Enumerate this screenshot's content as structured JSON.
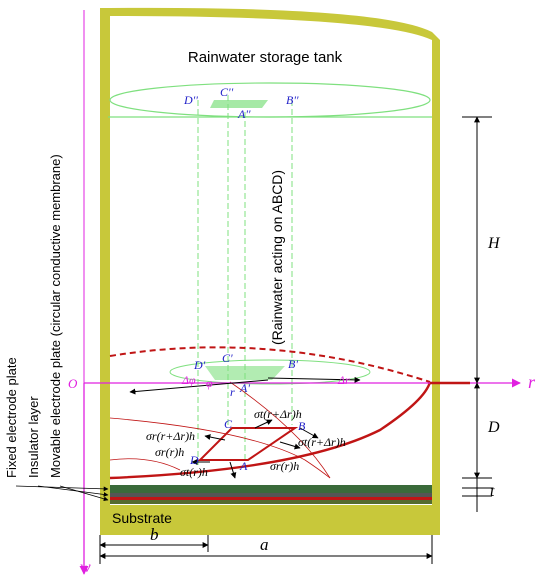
{
  "labels": {
    "tank_title": "Rainwater storage tank",
    "rain_note": "(Rainwater acting on ABCD)",
    "side_fixed": "Fixed electrode plate",
    "side_insulator": "Insulator layer",
    "side_movable": "Movable electrode plate (circular conductive membrane)",
    "substrate": "Substrate",
    "axis_r": "r",
    "axis_w": "w",
    "origin": "O",
    "dim_H": "H",
    "dim_D": "D",
    "dim_t": "t",
    "dim_a": "a",
    "dim_b": "b",
    "top_A": "A''",
    "top_B": "B''",
    "top_C": "C''",
    "top_D": "D''",
    "mid_A": "A'",
    "mid_B": "B'",
    "mid_C": "C'",
    "mid_D": "D'",
    "el_A": "A",
    "el_B": "B",
    "el_C": "C",
    "el_D": "D",
    "delta_phi": "Δφ",
    "phi": "φ",
    "r_small": "r",
    "delta_r": "Δr",
    "sr_rdr": "σr(r+Δr)h",
    "st_rdr": "σt(r+Δr)h",
    "st_rdr2": "σt(r+Δr)h",
    "sr_r_left": "σr(r)h",
    "sr_r_bottom": "σr(r)h",
    "st_r": "σt(r)h"
  },
  "colors": {
    "tank_wall": "#c8c83a",
    "green_guide": "#7fe07f",
    "membrane_red": "#c01515",
    "axis_purple": "#e020e0",
    "label_blue": "#2020c8",
    "plate_dark_green": "#3a6a3a",
    "plate_gray": "#555555"
  }
}
